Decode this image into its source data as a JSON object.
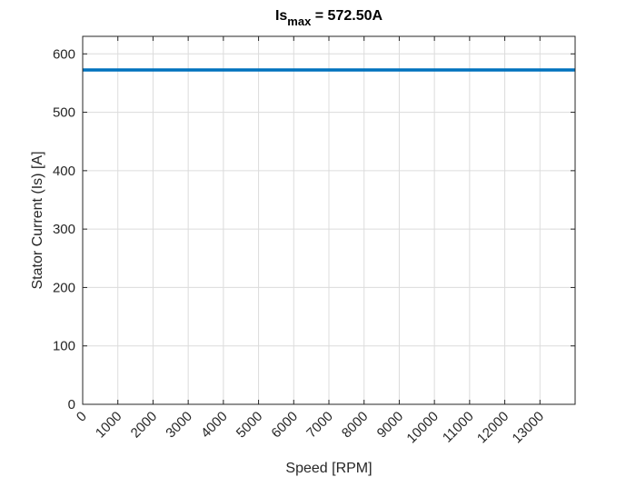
{
  "chart_data": {
    "type": "line",
    "title": {
      "main": "Is",
      "subscript": "max",
      "suffix": " = 572.50A"
    },
    "xlabel": "Speed [RPM]",
    "ylabel": "Stator Current (Is) [A]",
    "xlim": [
      0,
      14000
    ],
    "ylim": [
      0,
      630
    ],
    "xticks": [
      0,
      1000,
      2000,
      3000,
      4000,
      5000,
      6000,
      7000,
      8000,
      9000,
      10000,
      11000,
      12000,
      13000
    ],
    "yticks": [
      0,
      100,
      200,
      300,
      400,
      500,
      600
    ],
    "grid": true,
    "series": [
      {
        "x": [
          0,
          14000
        ],
        "y": [
          572.5,
          572.5
        ],
        "color": "#0072BD"
      }
    ]
  }
}
